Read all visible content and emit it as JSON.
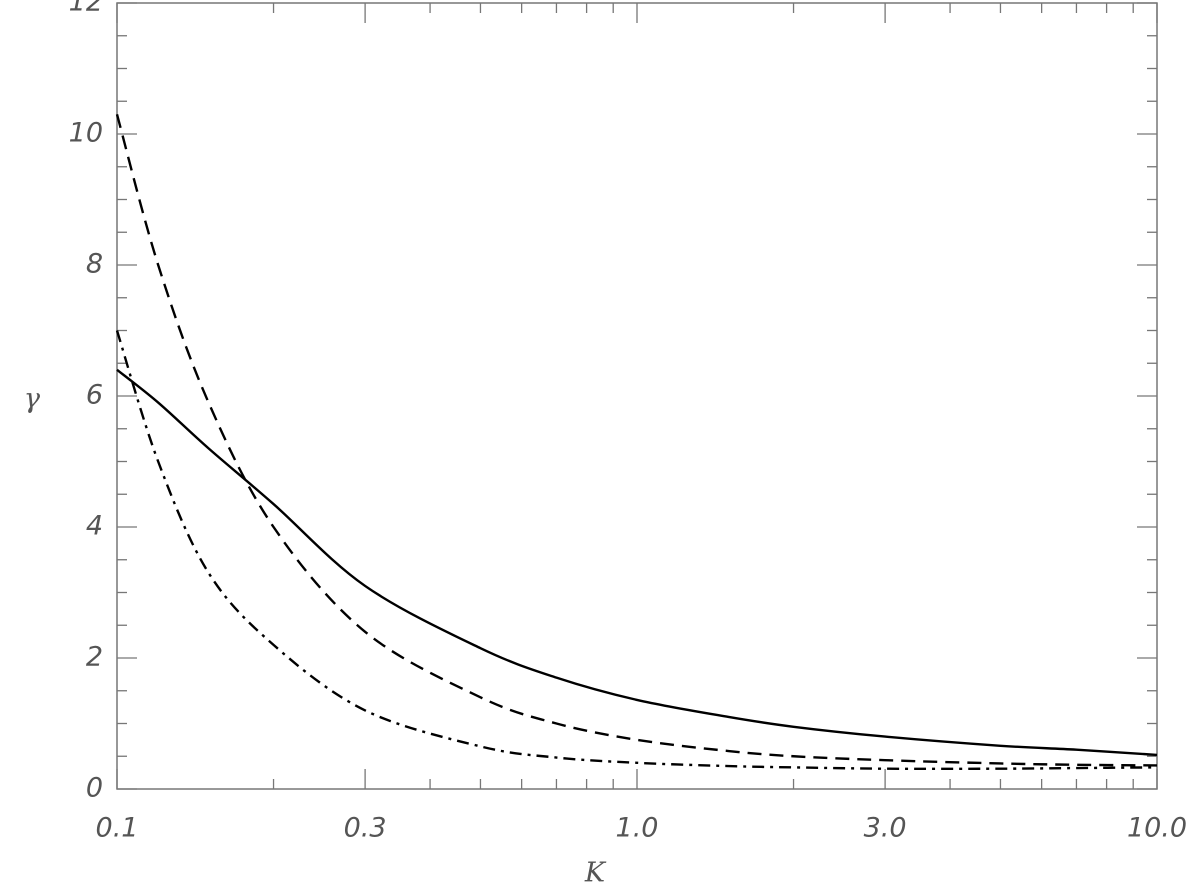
{
  "chart_data": {
    "type": "line",
    "xlabel": "K",
    "ylabel": "γ",
    "xscale": "log",
    "xlim": [
      0.1,
      10
    ],
    "ylim": [
      0,
      12
    ],
    "xticks": [
      0.1,
      0.3,
      {
        "value": 1,
        "label": "1.0"
      },
      {
        "value": 3,
        "label": "3.0"
      },
      {
        "value": 10,
        "label": "10.0"
      }
    ],
    "xminorticks": [
      0.2,
      0.4,
      0.5,
      0.6,
      0.7,
      0.8,
      0.9,
      2,
      4,
      5,
      6,
      7,
      8,
      9
    ],
    "yticks": [
      0,
      2,
      4,
      6,
      8,
      10,
      12
    ],
    "yminorticks": [
      0.5,
      1,
      1.5,
      2.5,
      3,
      3.5,
      4.5,
      5,
      5.5,
      6.5,
      7,
      7.5,
      8.5,
      9,
      9.5,
      10.5,
      11,
      11.5
    ],
    "x": [
      0.1,
      0.12,
      0.15,
      0.2,
      0.3,
      0.5,
      0.7,
      1,
      1.5,
      2,
      3,
      5,
      7,
      10
    ],
    "series": [
      {
        "color": "#000000",
        "style": "solid",
        "values": [
          6.4,
          5.9,
          5.2,
          4.35,
          3.1,
          2.15,
          1.7,
          1.36,
          1.1,
          0.95,
          0.8,
          0.66,
          0.6,
          0.52
        ]
      },
      {
        "color": "#000000",
        "style": "dashed",
        "values": [
          10.3,
          8.0,
          5.9,
          4.0,
          2.4,
          1.4,
          1.0,
          0.75,
          0.58,
          0.5,
          0.44,
          0.39,
          0.37,
          0.36
        ]
      },
      {
        "color": "#000000",
        "style": "dashdot",
        "values": [
          7.0,
          5.0,
          3.3,
          2.2,
          1.2,
          0.65,
          0.48,
          0.4,
          0.35,
          0.33,
          0.31,
          0.31,
          0.32,
          0.33
        ]
      }
    ]
  }
}
